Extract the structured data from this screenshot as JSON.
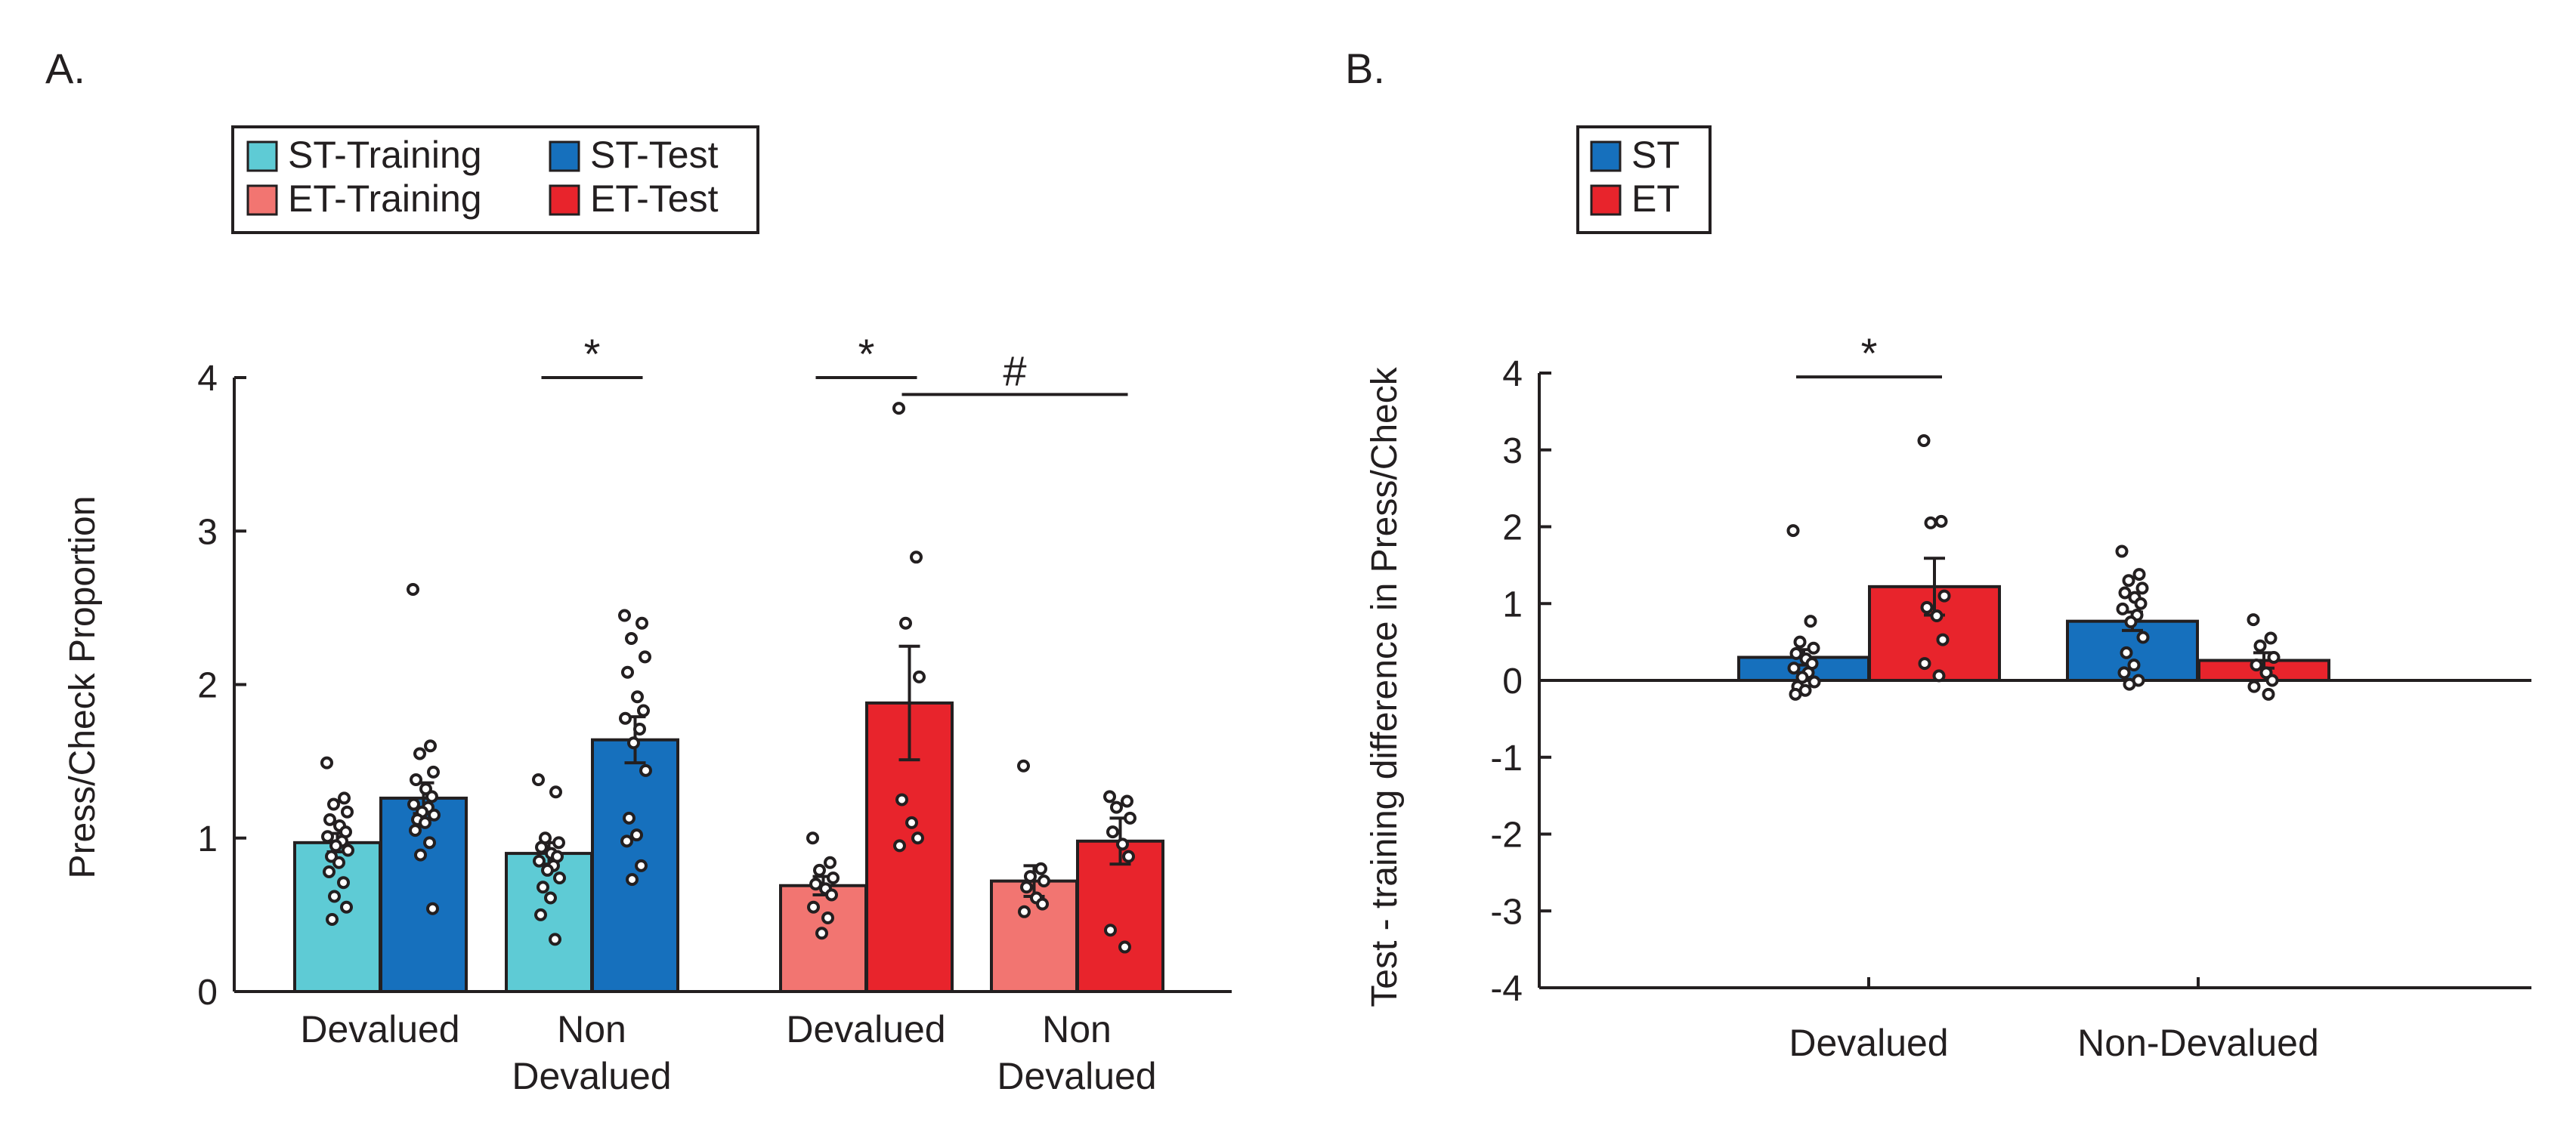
{
  "panels": {
    "a": {
      "label": "A."
    },
    "b": {
      "label": "B."
    }
  },
  "colors": {
    "st_training": "#5ecbd5",
    "st_test": "#1670bd",
    "et_training": "#f27571",
    "et_test": "#e8242c",
    "st": "#1670bd",
    "et": "#e8242c",
    "ink": "#231f20"
  },
  "chart_data": [
    {
      "type": "bar",
      "panel": "A",
      "ylabel": "Press/Check Proportion",
      "xlabel": "",
      "ylim": [
        0,
        4
      ],
      "yticks": [
        0,
        1,
        2,
        3,
        4
      ],
      "legend_position": "top-left",
      "legend": [
        "ST-Training",
        "ST-Test",
        "ET-Training",
        "ET-Test"
      ],
      "group_labels": [
        [
          "Devalued"
        ],
        [
          "Non",
          "Devalued"
        ],
        [
          "Devalued"
        ],
        [
          "Non",
          "Devalued"
        ]
      ],
      "bars": [
        {
          "series": "ST-Training",
          "group": 0,
          "value": 0.97,
          "sem": 0.06,
          "points": [
            1.49,
            1.26,
            1.22,
            1.17,
            1.12,
            1.08,
            1.04,
            1.01,
            0.98,
            0.95,
            0.92,
            0.88,
            0.84,
            0.78,
            0.71,
            0.62,
            0.55,
            0.47
          ]
        },
        {
          "series": "ST-Test",
          "group": 0,
          "value": 1.26,
          "sem": 0.1,
          "points": [
            2.62,
            1.6,
            1.55,
            1.43,
            1.38,
            1.32,
            1.27,
            1.22,
            1.2,
            1.17,
            1.15,
            1.12,
            1.1,
            1.05,
            0.97,
            0.89,
            0.54
          ]
        },
        {
          "series": "ST-Training",
          "group": 1,
          "value": 0.9,
          "sem": 0.07,
          "points": [
            1.38,
            1.3,
            1.0,
            0.97,
            0.94,
            0.9,
            0.88,
            0.85,
            0.82,
            0.79,
            0.74,
            0.68,
            0.61,
            0.5,
            0.34
          ]
        },
        {
          "series": "ST-Test",
          "group": 1,
          "value": 1.64,
          "sem": 0.15,
          "points": [
            2.45,
            2.4,
            2.3,
            2.18,
            2.08,
            1.92,
            1.83,
            1.78,
            1.71,
            1.62,
            1.44,
            1.13,
            1.02,
            0.98,
            0.82,
            0.73
          ]
        },
        {
          "series": "ET-Training",
          "group": 2,
          "value": 0.69,
          "sem": 0.06,
          "points": [
            1.0,
            0.84,
            0.79,
            0.74,
            0.7,
            0.67,
            0.63,
            0.55,
            0.48,
            0.38
          ]
        },
        {
          "series": "ET-Test",
          "group": 2,
          "value": 1.88,
          "sem": 0.37,
          "points": [
            3.8,
            2.83,
            2.4,
            2.05,
            1.25,
            1.1,
            1.0,
            0.95
          ]
        },
        {
          "series": "ET-Training",
          "group": 3,
          "value": 0.72,
          "sem": 0.1,
          "points": [
            1.47,
            0.8,
            0.75,
            0.72,
            0.68,
            0.61,
            0.57,
            0.52
          ]
        },
        {
          "series": "ET-Test",
          "group": 3,
          "value": 0.98,
          "sem": 0.15,
          "points": [
            1.27,
            1.24,
            1.2,
            1.13,
            1.04,
            0.96,
            0.88,
            0.4,
            0.29
          ]
        }
      ],
      "annotations": [
        {
          "text": "*",
          "from_bar": 2,
          "to_bar": 3,
          "y": 4.0
        },
        {
          "text": "*",
          "from_bar": 4,
          "to_bar": 5,
          "y": 4.0
        },
        {
          "text": "#",
          "from_bar": 5,
          "to_bar": 7,
          "y": 3.89
        }
      ]
    },
    {
      "type": "bar",
      "panel": "B",
      "ylabel": "Test - training difference in Press/Check",
      "xlabel": "",
      "ylim": [
        -4,
        4
      ],
      "yticks": [
        -4,
        -3,
        -2,
        -1,
        0,
        1,
        2,
        3,
        4
      ],
      "legend_position": "top-left",
      "legend": [
        "ST",
        "ET"
      ],
      "categories": [
        "Devalued",
        "Non-Devalued"
      ],
      "bars": [
        {
          "series": "ST",
          "group": 0,
          "value": 0.3,
          "sem": 0.1,
          "points": [
            1.95,
            0.77,
            0.5,
            0.42,
            0.35,
            0.28,
            0.22,
            0.16,
            0.1,
            0.04,
            -0.02,
            -0.08,
            -0.13,
            -0.18
          ]
        },
        {
          "series": "ET",
          "group": 0,
          "value": 1.22,
          "sem": 0.37,
          "points": [
            3.12,
            2.07,
            2.05,
            1.1,
            0.95,
            0.84,
            0.53,
            0.22,
            0.06
          ]
        },
        {
          "series": "ST",
          "group": 1,
          "value": 0.77,
          "sem": 0.12,
          "points": [
            1.68,
            1.38,
            1.3,
            1.2,
            1.14,
            1.08,
            1.0,
            0.93,
            0.85,
            0.76,
            0.56,
            0.36,
            0.2,
            0.1,
            0.0,
            -0.05
          ]
        },
        {
          "series": "ET",
          "group": 1,
          "value": 0.26,
          "sem": 0.1,
          "points": [
            0.79,
            0.55,
            0.45,
            0.3,
            0.2,
            0.1,
            0.0,
            -0.08,
            -0.18
          ]
        }
      ],
      "annotations": [
        {
          "text": "*",
          "from_bar": 0,
          "to_bar": 1,
          "y": 3.95
        }
      ]
    }
  ]
}
